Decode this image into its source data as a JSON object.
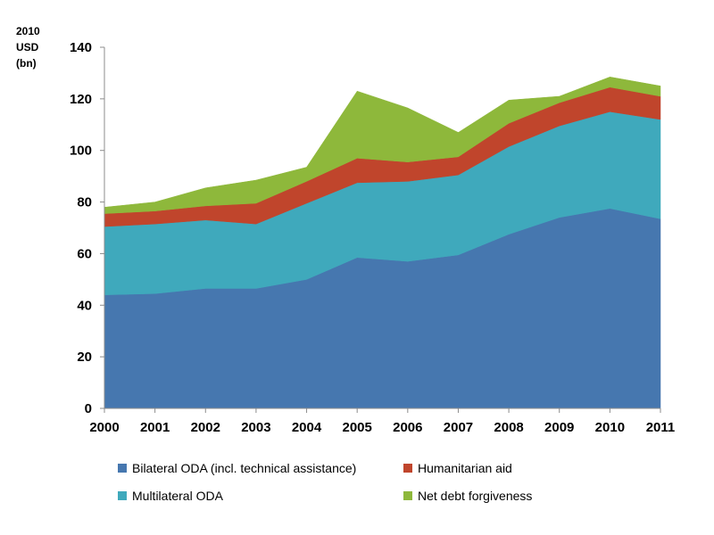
{
  "chart_data": {
    "type": "area",
    "stacked": true,
    "unit_label": "2010\nUSD\n(bn)",
    "x": [
      2000,
      2001,
      2002,
      2003,
      2004,
      2005,
      2006,
      2007,
      2008,
      2009,
      2010,
      2011
    ],
    "ylim": [
      0,
      140
    ],
    "yticks": [
      0,
      20,
      40,
      60,
      80,
      100,
      120,
      140
    ],
    "grid": false,
    "legend_position": "bottom",
    "series": [
      {
        "name": "Bilateral ODA (incl. technical assistance)",
        "color": "#4677AF",
        "values": [
          44,
          44.5,
          46.5,
          46.5,
          50,
          58.5,
          57,
          59.5,
          67.5,
          74,
          77.5,
          73.5
        ]
      },
      {
        "name": "Multilateral ODA",
        "color": "#3FA9BC",
        "values": [
          26.5,
          27,
          26.5,
          25,
          29.5,
          29,
          31,
          31,
          34,
          35.5,
          37.5,
          38.5
        ]
      },
      {
        "name": "Humanitarian aid",
        "color": "#C0452C",
        "values": [
          5,
          5,
          5.5,
          8,
          8.5,
          9.5,
          7.5,
          7,
          9,
          9,
          9.5,
          9
        ]
      },
      {
        "name": "Net debt forgiveness",
        "color": "#8EB83B",
        "values": [
          2.5,
          3.5,
          7,
          9,
          5.5,
          26,
          21,
          9.5,
          9,
          2.5,
          4,
          4
        ]
      }
    ]
  }
}
